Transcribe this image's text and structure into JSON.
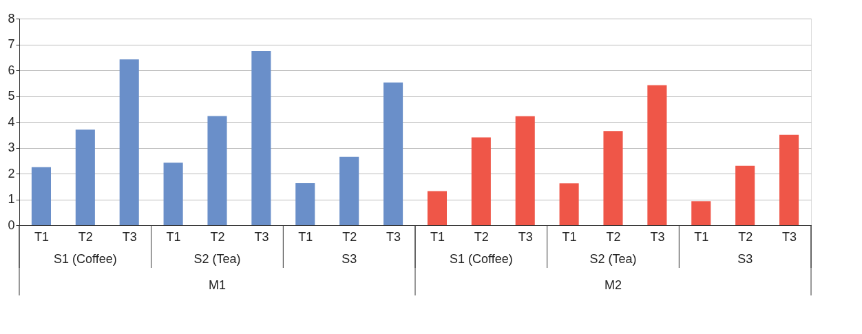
{
  "chart_data": {
    "type": "bar",
    "categories": [
      "T1",
      "T2",
      "T3",
      "T1",
      "T2",
      "T3",
      "T1",
      "T2",
      "T3",
      "T1",
      "T2",
      "T3",
      "T1",
      "T2",
      "T3",
      "T1",
      "T2",
      "T3"
    ],
    "values": [
      2.25,
      3.7,
      6.42,
      2.42,
      4.23,
      6.75,
      1.63,
      2.65,
      5.53,
      1.32,
      3.4,
      4.22,
      1.62,
      3.65,
      5.42,
      0.93,
      2.3,
      3.5
    ],
    "colors": [
      "#6a8fc9",
      "#6a8fc9",
      "#6a8fc9",
      "#6a8fc9",
      "#6a8fc9",
      "#6a8fc9",
      "#6a8fc9",
      "#6a8fc9",
      "#6a8fc9",
      "#ef5648",
      "#ef5648",
      "#ef5648",
      "#ef5648",
      "#ef5648",
      "#ef5648",
      "#ef5648",
      "#ef5648",
      "#ef5648"
    ],
    "annotations": [
      "S1 (Coffee)",
      "S2 (Tea)",
      "S3",
      "S1 (Coffee)",
      "S2 (Tea)",
      "S3",
      "M1",
      "M2"
    ],
    "ylim": [
      0,
      8
    ],
    "yticks": [
      0,
      1,
      2,
      3,
      4,
      5,
      6,
      7,
      8
    ],
    "grid": "y",
    "legend": false
  }
}
